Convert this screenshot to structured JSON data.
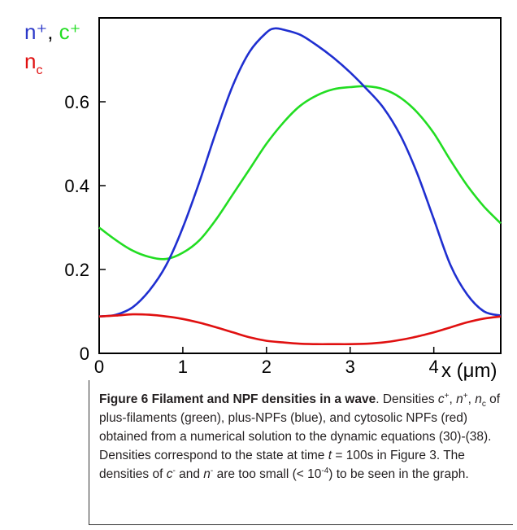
{
  "chart_data": {
    "type": "line",
    "xlim": [
      0,
      4.8
    ],
    "ylim": [
      0,
      0.8
    ],
    "xticks": [
      0,
      1,
      2,
      3,
      4
    ],
    "yticks": [
      0,
      0.2,
      0.4,
      0.6
    ],
    "xtick_labels": [
      "0",
      "1",
      "2",
      "3",
      "4"
    ],
    "ytick_labels": [
      "0",
      "0.2",
      "0.4",
      "0.6"
    ],
    "xlabel": "x (μm)",
    "legend": {
      "line1": [
        {
          "text": "n⁺",
          "color": "#2b38c8"
        },
        {
          "text": ", ",
          "color": "#000000"
        },
        {
          "text": "c⁺",
          "color": "#22dd22"
        }
      ],
      "line2": [
        {
          "text": "n",
          "sub": "c",
          "color": "#e01010"
        }
      ]
    },
    "series": [
      {
        "color": "#1f2fd0",
        "x": [
          0,
          0.2,
          0.4,
          0.6,
          0.8,
          1.0,
          1.2,
          1.4,
          1.6,
          1.8,
          2.0,
          2.1,
          2.2,
          2.4,
          2.6,
          2.8,
          3.0,
          3.2,
          3.4,
          3.6,
          3.8,
          4.0,
          4.2,
          4.4,
          4.6,
          4.8
        ],
        "y": [
          0.088,
          0.092,
          0.11,
          0.15,
          0.21,
          0.3,
          0.41,
          0.53,
          0.64,
          0.72,
          0.765,
          0.775,
          0.772,
          0.76,
          0.735,
          0.705,
          0.67,
          0.63,
          0.585,
          0.52,
          0.43,
          0.32,
          0.21,
          0.14,
          0.1,
          0.09
        ]
      },
      {
        "color": "#22dd22",
        "x": [
          0,
          0.2,
          0.4,
          0.6,
          0.8,
          1.0,
          1.2,
          1.4,
          1.6,
          1.8,
          2.0,
          2.2,
          2.4,
          2.6,
          2.8,
          3.0,
          3.2,
          3.4,
          3.6,
          3.8,
          4.0,
          4.2,
          4.4,
          4.6,
          4.8
        ],
        "y": [
          0.3,
          0.27,
          0.245,
          0.23,
          0.225,
          0.24,
          0.27,
          0.32,
          0.38,
          0.44,
          0.5,
          0.55,
          0.59,
          0.615,
          0.63,
          0.635,
          0.637,
          0.63,
          0.61,
          0.575,
          0.525,
          0.46,
          0.4,
          0.35,
          0.31
        ]
      },
      {
        "color": "#e01010",
        "x": [
          0,
          0.2,
          0.4,
          0.6,
          0.8,
          1.0,
          1.2,
          1.4,
          1.6,
          1.8,
          2.0,
          2.2,
          2.4,
          2.6,
          2.8,
          3.0,
          3.2,
          3.4,
          3.6,
          3.8,
          4.0,
          4.2,
          4.4,
          4.6,
          4.8
        ],
        "y": [
          0.088,
          0.09,
          0.093,
          0.092,
          0.088,
          0.082,
          0.073,
          0.062,
          0.05,
          0.038,
          0.03,
          0.026,
          0.023,
          0.022,
          0.022,
          0.022,
          0.023,
          0.026,
          0.032,
          0.04,
          0.05,
          0.062,
          0.074,
          0.083,
          0.088
        ]
      }
    ]
  },
  "caption": {
    "title": "Figure 6 Filament and NPF densities in a wave",
    "body_start": ". Densities ",
    "c_plus": "c",
    "sup_plus": "+",
    "sep1": ", ",
    "n_plus": "n",
    "sep2": ", ",
    "n_c": "n",
    "sub_c": "c",
    "body_mid": " of plus-filaments (green), plus-NPFs (blue), and cytosolic NPFs (red) obtained from a numerical solution to the dynamic equations (30)-(38). Densities correspond to the state at time ",
    "t": "t",
    "body_time": " = 100s in Figure 3. The densities of ",
    "c_minus": "c",
    "sup_minus": "-",
    "and": " and ",
    "n_minus": "n",
    "body_small": " are too small (< 10",
    "exp": "-4",
    "body_end": ") to be seen in the graph."
  }
}
